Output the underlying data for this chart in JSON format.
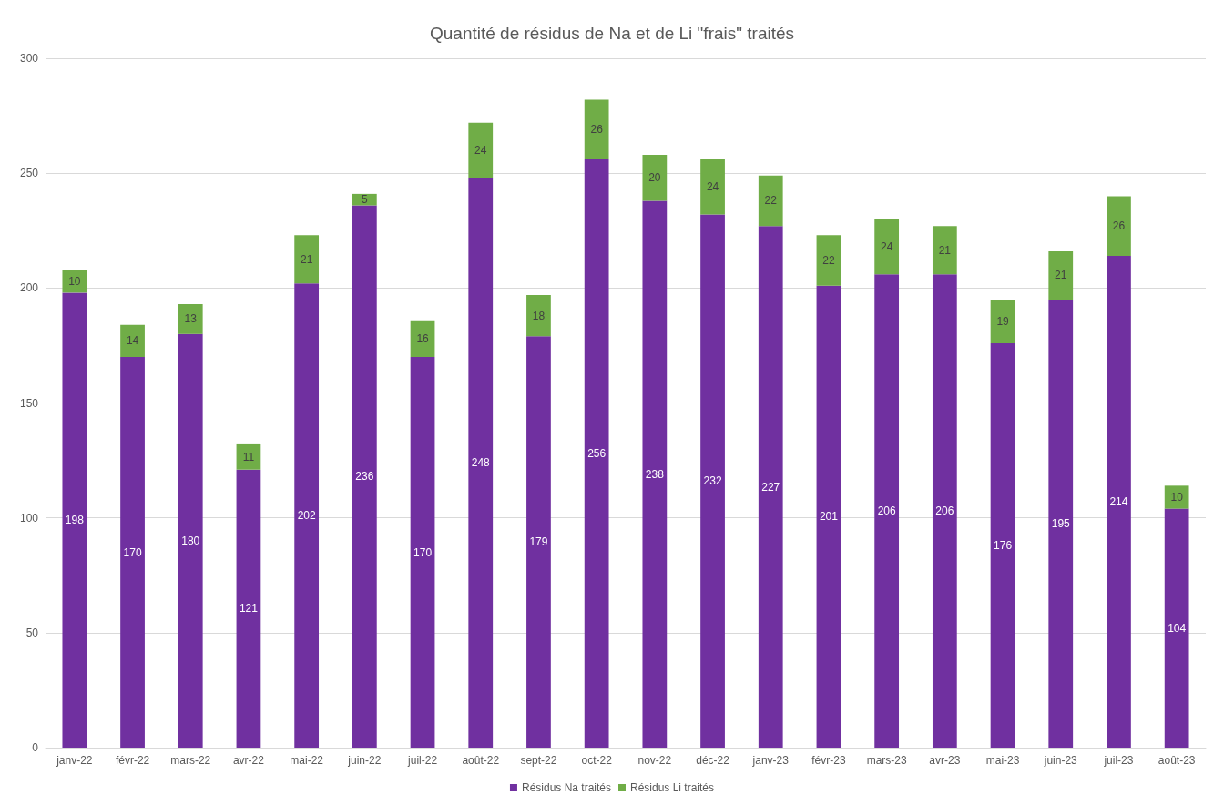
{
  "chart_data": {
    "type": "bar",
    "title": "Quantité de résidus de Na et de Li \"frais\" traités",
    "categories": [
      "janv-22",
      "févr-22",
      "mars-22",
      "avr-22",
      "mai-22",
      "juin-22",
      "juil-22",
      "août-22",
      "sept-22",
      "oct-22",
      "nov-22",
      "déc-22",
      "janv-23",
      "févr-23",
      "mars-23",
      "avr-23",
      "mai-23",
      "juin-23",
      "juil-23",
      "août-23"
    ],
    "series": [
      {
        "name": "Résidus Na traités",
        "color": "#7030a0",
        "values": [
          198,
          170,
          180,
          121,
          202,
          236,
          170,
          248,
          179,
          256,
          238,
          232,
          227,
          201,
          206,
          206,
          176,
          195,
          214,
          104
        ]
      },
      {
        "name": "Résidus Li traités",
        "color": "#70ad47",
        "values": [
          10,
          14,
          13,
          11,
          21,
          5,
          16,
          24,
          18,
          26,
          20,
          24,
          22,
          22,
          24,
          21,
          19,
          21,
          26,
          10
        ]
      }
    ],
    "stacked": true,
    "ylim": [
      0,
      300
    ],
    "yticks": [
      0,
      50,
      100,
      150,
      200,
      250,
      300
    ],
    "grid": "y",
    "legend": "bottom",
    "data_labels": true
  }
}
